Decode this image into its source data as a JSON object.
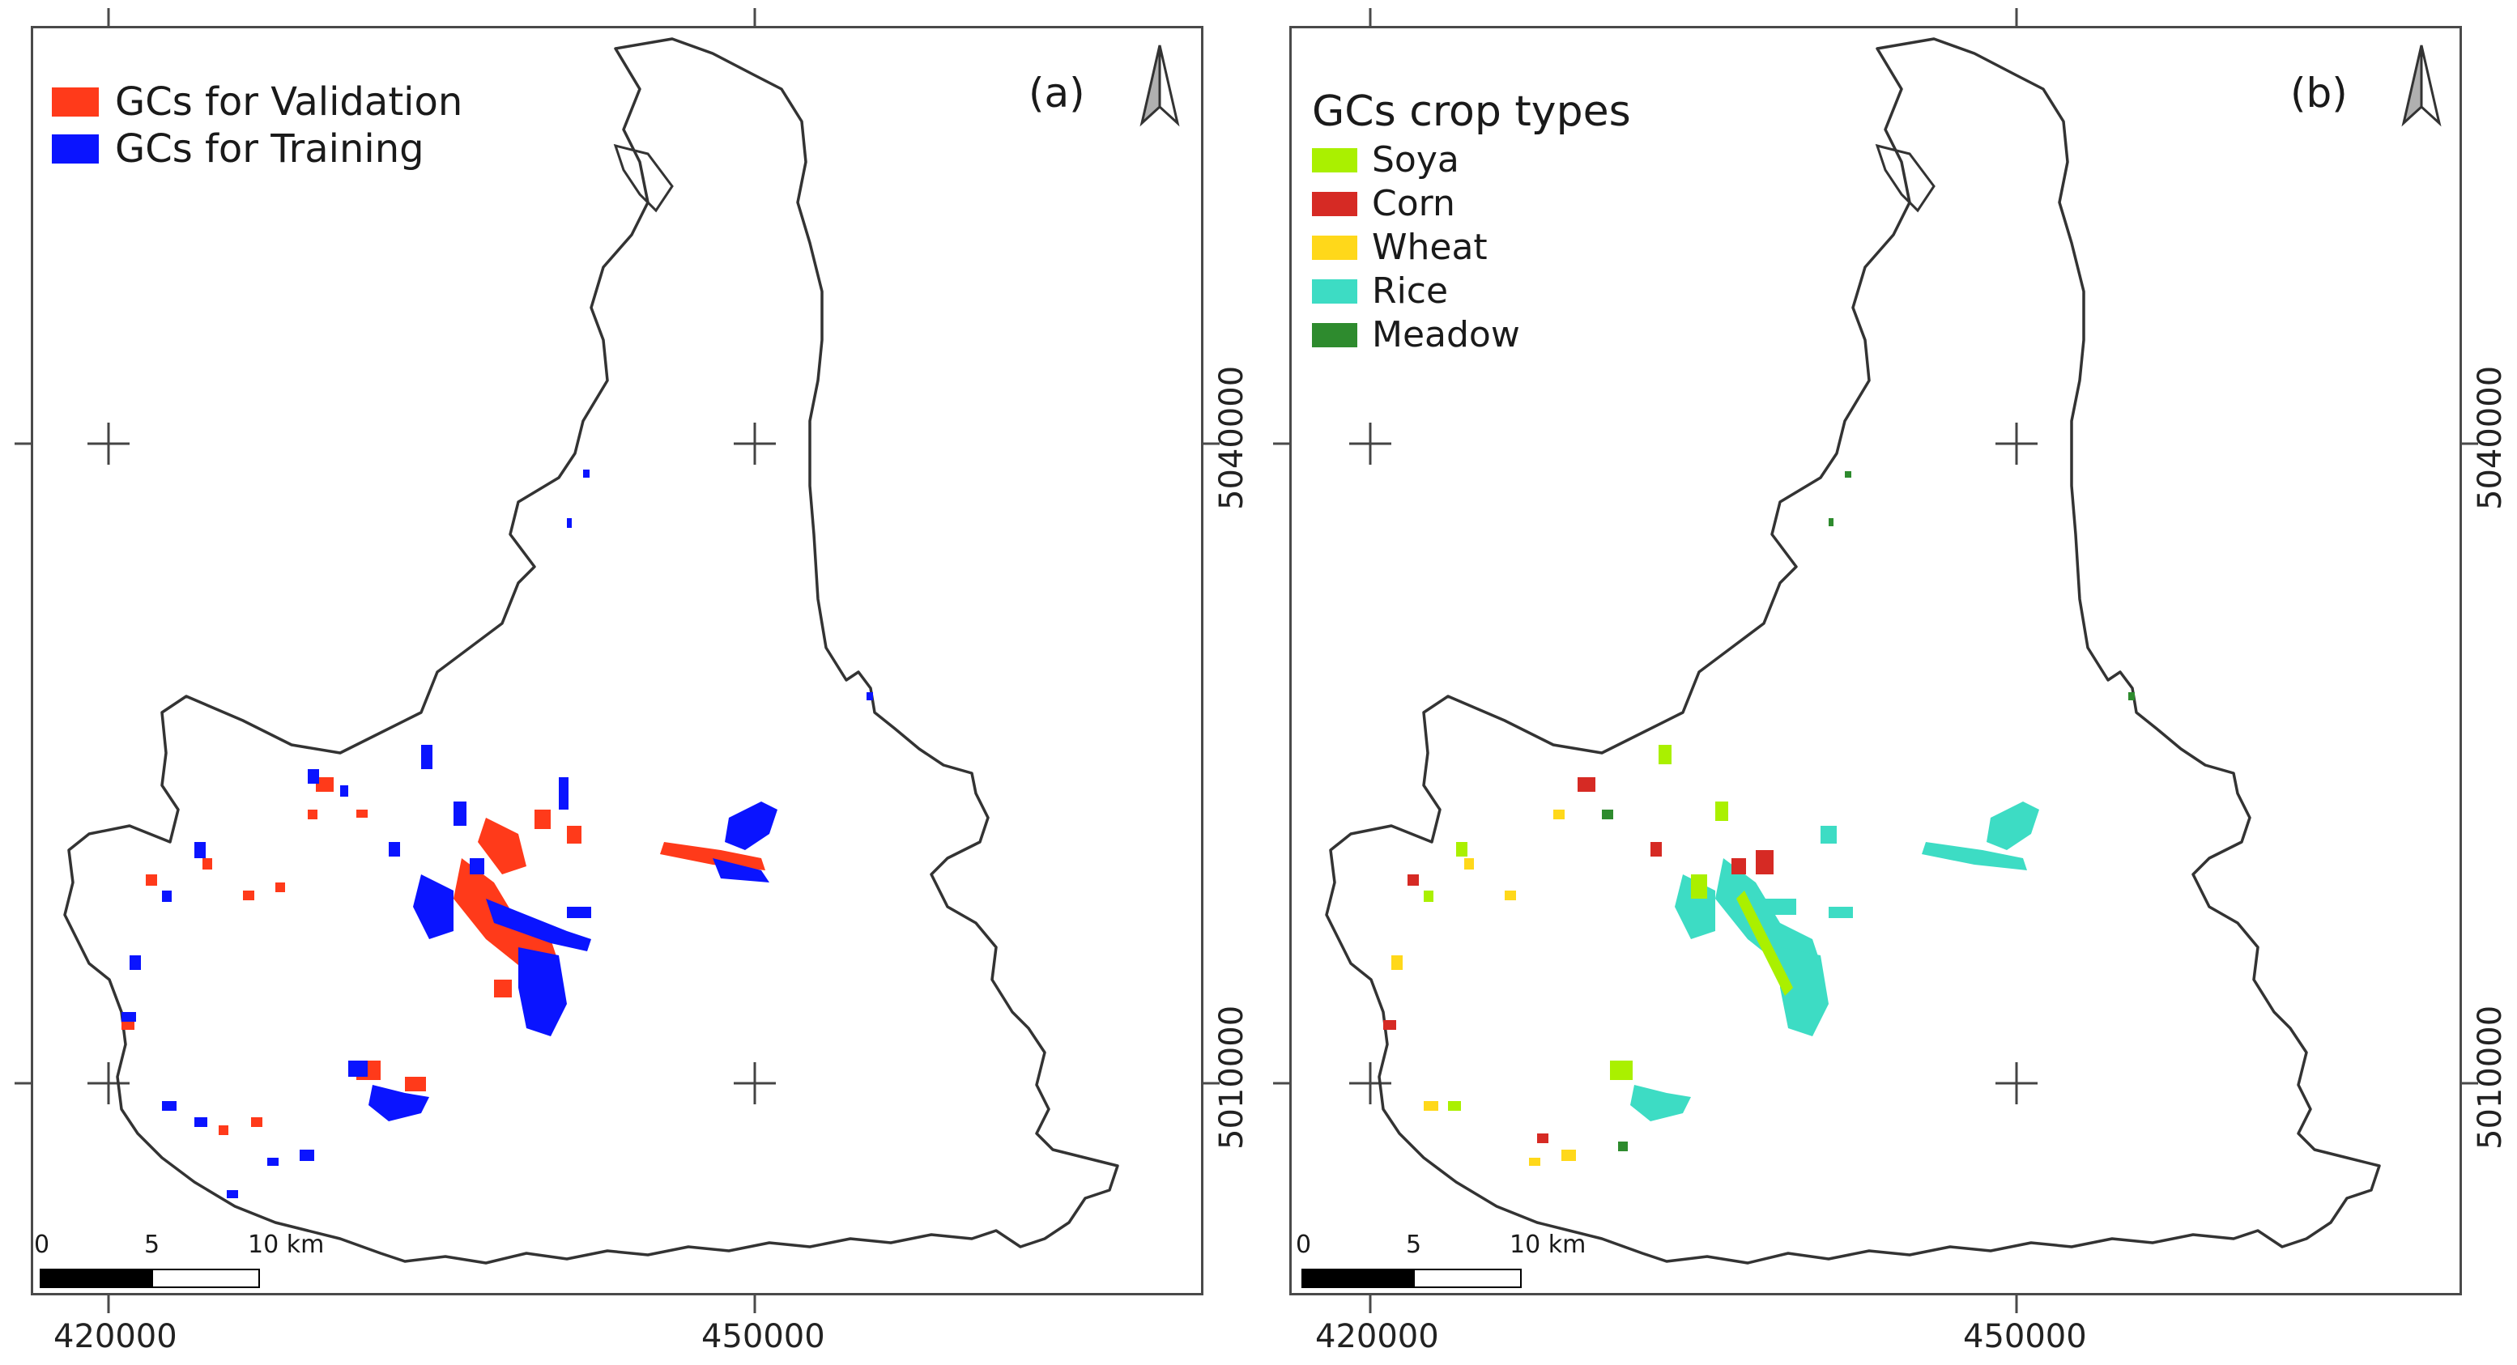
{
  "panels": [
    {
      "id": "a",
      "label": "(a)",
      "legend": {
        "title": "",
        "items": [
          {
            "label": "GCs for Validation",
            "color": "#ff3a1a"
          },
          {
            "label": "GCs for Training",
            "color": "#0a14ff"
          }
        ]
      },
      "x_ticks": [
        "420000",
        "450000"
      ],
      "y_ticks": [
        "5040000",
        "5010000"
      ],
      "scale": {
        "labels": [
          "0",
          "5",
          "10 km"
        ]
      }
    },
    {
      "id": "b",
      "label": "(b)",
      "legend": {
        "title": "GCs crop types",
        "items": [
          {
            "label": "Soya",
            "color": "#aaf000"
          },
          {
            "label": "Corn",
            "color": "#d62a24"
          },
          {
            "label": "Wheat",
            "color": "#ffd81a"
          },
          {
            "label": "Rice",
            "color": "#3ddcc4"
          },
          {
            "label": "Meadow",
            "color": "#2e8b2e"
          }
        ]
      },
      "x_ticks": [
        "420000",
        "450000"
      ],
      "y_ticks": [
        "5040000",
        "5010000"
      ],
      "scale": {
        "labels": [
          "0",
          "5",
          "10 km"
        ]
      }
    }
  ]
}
